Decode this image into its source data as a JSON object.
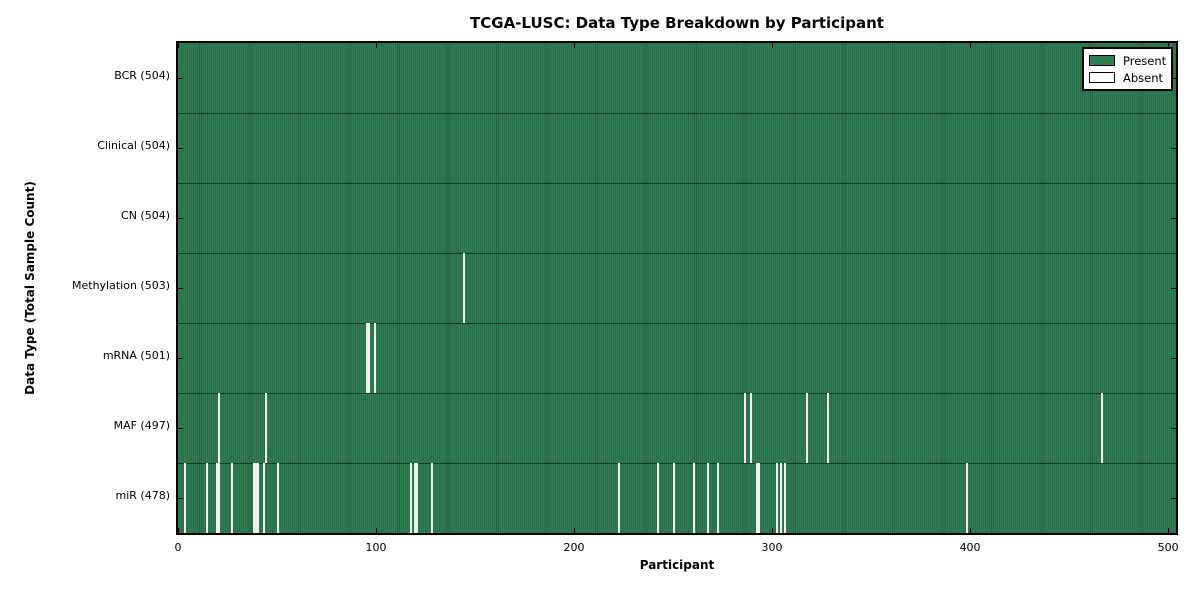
{
  "colors": {
    "present_fill": "#2f7e53",
    "present_stripe_edge": "#26603f",
    "absent_fill": "#f1f2ef",
    "axes_border": "#000000",
    "background": "#ffffff"
  },
  "chart_data": {
    "type": "heatmap",
    "title": "TCGA-LUSC: Data Type Breakdown by Participant",
    "xlabel": "Participant",
    "ylabel": "Data Type (Total Sample Count)",
    "x_ticks": [
      0,
      100,
      200,
      300,
      400,
      500
    ],
    "x_range": [
      0,
      504
    ],
    "total_participants": 504,
    "grid": false,
    "legend": {
      "position": "upper right",
      "entries": [
        {
          "label": "Present",
          "color": "#2f7e53"
        },
        {
          "label": "Absent",
          "color": "#ffffff"
        }
      ]
    },
    "rows": [
      {
        "label": "BCR (504)",
        "data_type": "BCR",
        "sample_count": 504,
        "absent_participants": []
      },
      {
        "label": "Clinical (504)",
        "data_type": "Clinical",
        "sample_count": 504,
        "absent_participants": []
      },
      {
        "label": "CN (504)",
        "data_type": "CN",
        "sample_count": 504,
        "absent_participants": []
      },
      {
        "label": "Methylation (503)",
        "data_type": "Methylation",
        "sample_count": 503,
        "absent_participants": [
          144
        ]
      },
      {
        "label": "mRNA (501)",
        "data_type": "mRNA",
        "sample_count": 501,
        "absent_participants": [
          95,
          96,
          99
        ]
      },
      {
        "label": "MAF (497)",
        "data_type": "MAF",
        "sample_count": 497,
        "absent_participants": [
          20,
          44,
          286,
          289,
          317,
          328,
          466
        ]
      },
      {
        "label": "miR (478)",
        "data_type": "miR",
        "sample_count": 478,
        "absent_participants": [
          3,
          14,
          19,
          20,
          27,
          38,
          39,
          40,
          43,
          50,
          117,
          119,
          120,
          128,
          222,
          242,
          250,
          260,
          267,
          272,
          292,
          293,
          302,
          304,
          306,
          398
        ]
      }
    ]
  }
}
